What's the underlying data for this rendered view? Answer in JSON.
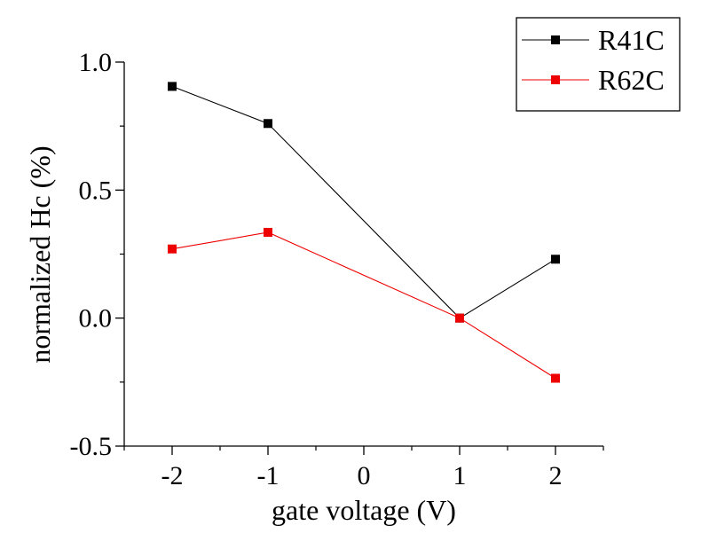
{
  "chart_data": {
    "type": "line",
    "title": "",
    "xlabel": "gate voltage (V)",
    "ylabel": "normalized Hc (%)",
    "xlim": [
      -2.5,
      2.5
    ],
    "ylim": [
      -0.5,
      1.0
    ],
    "x_ticks": [
      -2,
      -1,
      0,
      1,
      2
    ],
    "x_tick_labels": [
      "-2",
      "-1",
      "0",
      "1",
      "2"
    ],
    "y_ticks": [
      -0.5,
      0.0,
      0.5,
      1.0
    ],
    "y_tick_labels": [
      "-0.5",
      "0.0",
      "0.5",
      "1.0"
    ],
    "grid": false,
    "legend_position": "top-right",
    "series": [
      {
        "name": "R41C",
        "color": "#000000",
        "marker": "square",
        "x": [
          -2,
          -1,
          1,
          2
        ],
        "values": [
          0.905,
          0.76,
          0.0,
          0.23
        ]
      },
      {
        "name": "R62C",
        "color": "#ee0000",
        "marker": "square",
        "x": [
          -2,
          -1,
          1,
          2
        ],
        "values": [
          0.27,
          0.335,
          0.0,
          -0.235
        ]
      }
    ]
  }
}
